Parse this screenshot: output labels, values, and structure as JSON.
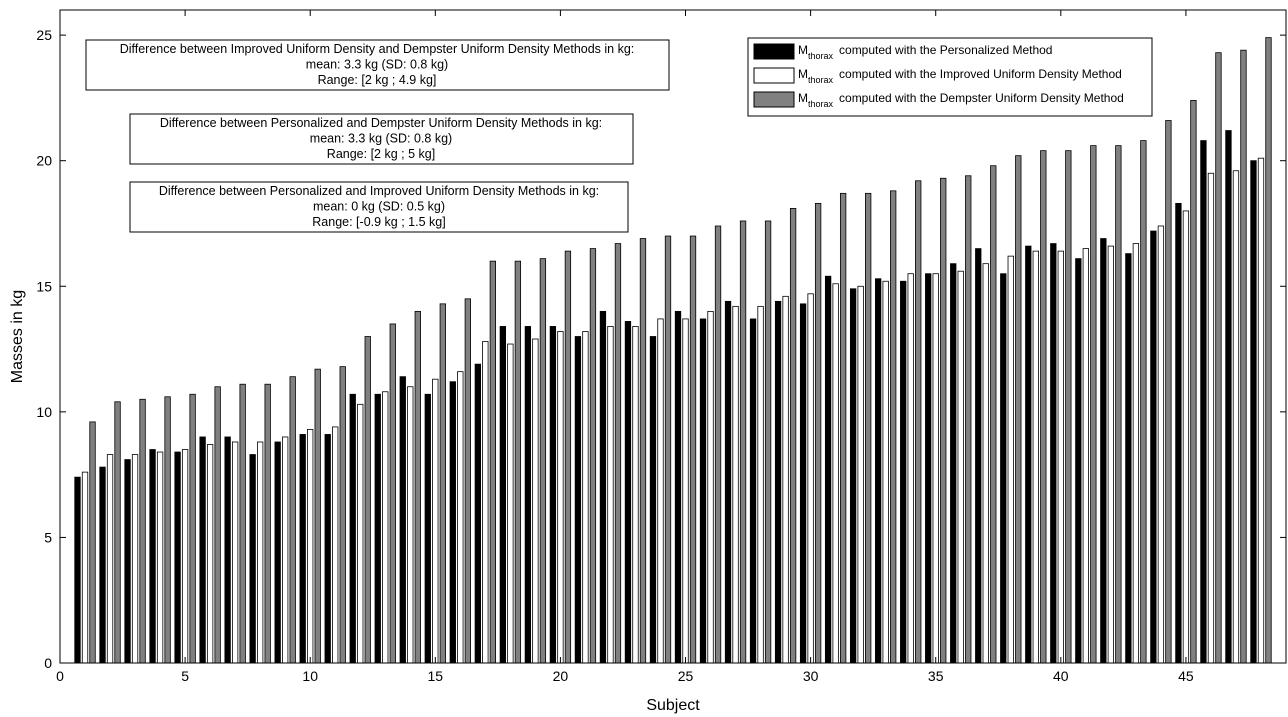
{
  "chart_data": {
    "type": "bar",
    "xlabel": "Subject",
    "ylabel": "Masses in kg",
    "xlim": [
      0,
      49
    ],
    "ylim": [
      0,
      26
    ],
    "xticks": [
      0,
      5,
      10,
      15,
      20,
      25,
      30,
      35,
      40,
      45
    ],
    "yticks": [
      0,
      5,
      10,
      15,
      20,
      25
    ],
    "grid": false,
    "legend_position": "top-right",
    "categories": [
      1,
      2,
      3,
      4,
      5,
      6,
      7,
      8,
      9,
      10,
      11,
      12,
      13,
      14,
      15,
      16,
      17,
      18,
      19,
      20,
      21,
      22,
      23,
      24,
      25,
      26,
      27,
      28,
      29,
      30,
      31,
      32,
      33,
      34,
      35,
      36,
      37,
      38,
      39,
      40,
      41,
      42,
      43,
      44,
      45,
      46,
      47,
      48
    ],
    "series": [
      {
        "name": "computed with the Personalized Method",
        "label_symbol": "M",
        "label_subscript": "thorax",
        "color": "#000000",
        "values": [
          7.4,
          7.8,
          8.1,
          8.5,
          8.4,
          9.0,
          9.0,
          8.3,
          8.8,
          9.1,
          9.1,
          10.7,
          10.7,
          11.4,
          10.7,
          11.2,
          11.9,
          13.4,
          13.4,
          13.4,
          13.0,
          14.0,
          13.6,
          13.0,
          14.0,
          13.7,
          14.4,
          13.7,
          14.4,
          14.3,
          15.4,
          14.9,
          15.3,
          15.2,
          15.5,
          15.9,
          16.5,
          15.5,
          16.6,
          16.7,
          16.1,
          16.9,
          16.3,
          17.2,
          18.3,
          20.8,
          21.2,
          20.0
        ]
      },
      {
        "name": "computed with the Improved Uniform Density Method",
        "label_symbol": "M",
        "label_subscript": "thorax",
        "color": "#ffffff",
        "values": [
          7.6,
          8.3,
          8.3,
          8.4,
          8.5,
          8.7,
          8.8,
          8.8,
          9.0,
          9.3,
          9.4,
          10.3,
          10.8,
          11.0,
          11.3,
          11.6,
          12.8,
          12.7,
          12.9,
          13.2,
          13.2,
          13.4,
          13.4,
          13.7,
          13.7,
          14.0,
          14.2,
          14.2,
          14.6,
          14.7,
          15.1,
          15.0,
          15.2,
          15.5,
          15.5,
          15.6,
          15.9,
          16.2,
          16.4,
          16.4,
          16.5,
          16.6,
          16.7,
          17.4,
          18.0,
          19.5,
          19.6,
          20.1
        ]
      },
      {
        "name": "computed with the Dempster Uniform Density Method",
        "label_symbol": "M",
        "label_subscript": "thorax",
        "color": "#808080",
        "values": [
          9.6,
          10.4,
          10.5,
          10.6,
          10.7,
          11.0,
          11.1,
          11.1,
          11.4,
          11.7,
          11.8,
          13.0,
          13.5,
          14.0,
          14.3,
          14.5,
          16.0,
          16.0,
          16.1,
          16.4,
          16.5,
          16.7,
          16.9,
          17.0,
          17.0,
          17.4,
          17.6,
          17.6,
          18.1,
          18.3,
          18.7,
          18.7,
          18.8,
          19.2,
          19.3,
          19.4,
          19.8,
          20.2,
          20.4,
          20.4,
          20.6,
          20.6,
          20.8,
          21.6,
          22.4,
          24.3,
          24.4,
          24.9
        ]
      }
    ],
    "annotations": [
      {
        "lines": [
          "Difference between Improved Uniform Density and Dempster Uniform Density Methods in kg:",
          "mean: 3.3 kg (SD: 0.8 kg)",
          "Range: [2 kg ; 4.9 kg]"
        ]
      },
      {
        "lines": [
          "Difference between Personalized and Dempster Uniform Density Methods in kg:",
          "mean: 3.3 kg (SD: 0.8 kg)",
          "Range: [2 kg ; 5 kg]"
        ]
      },
      {
        "lines": [
          "Difference between Personalized and Improved Uniform Density Methods in kg:",
          "mean: 0 kg (SD: 0.5 kg)",
          "Range: [-0.9 kg ; 1.5 kg]"
        ]
      }
    ]
  }
}
